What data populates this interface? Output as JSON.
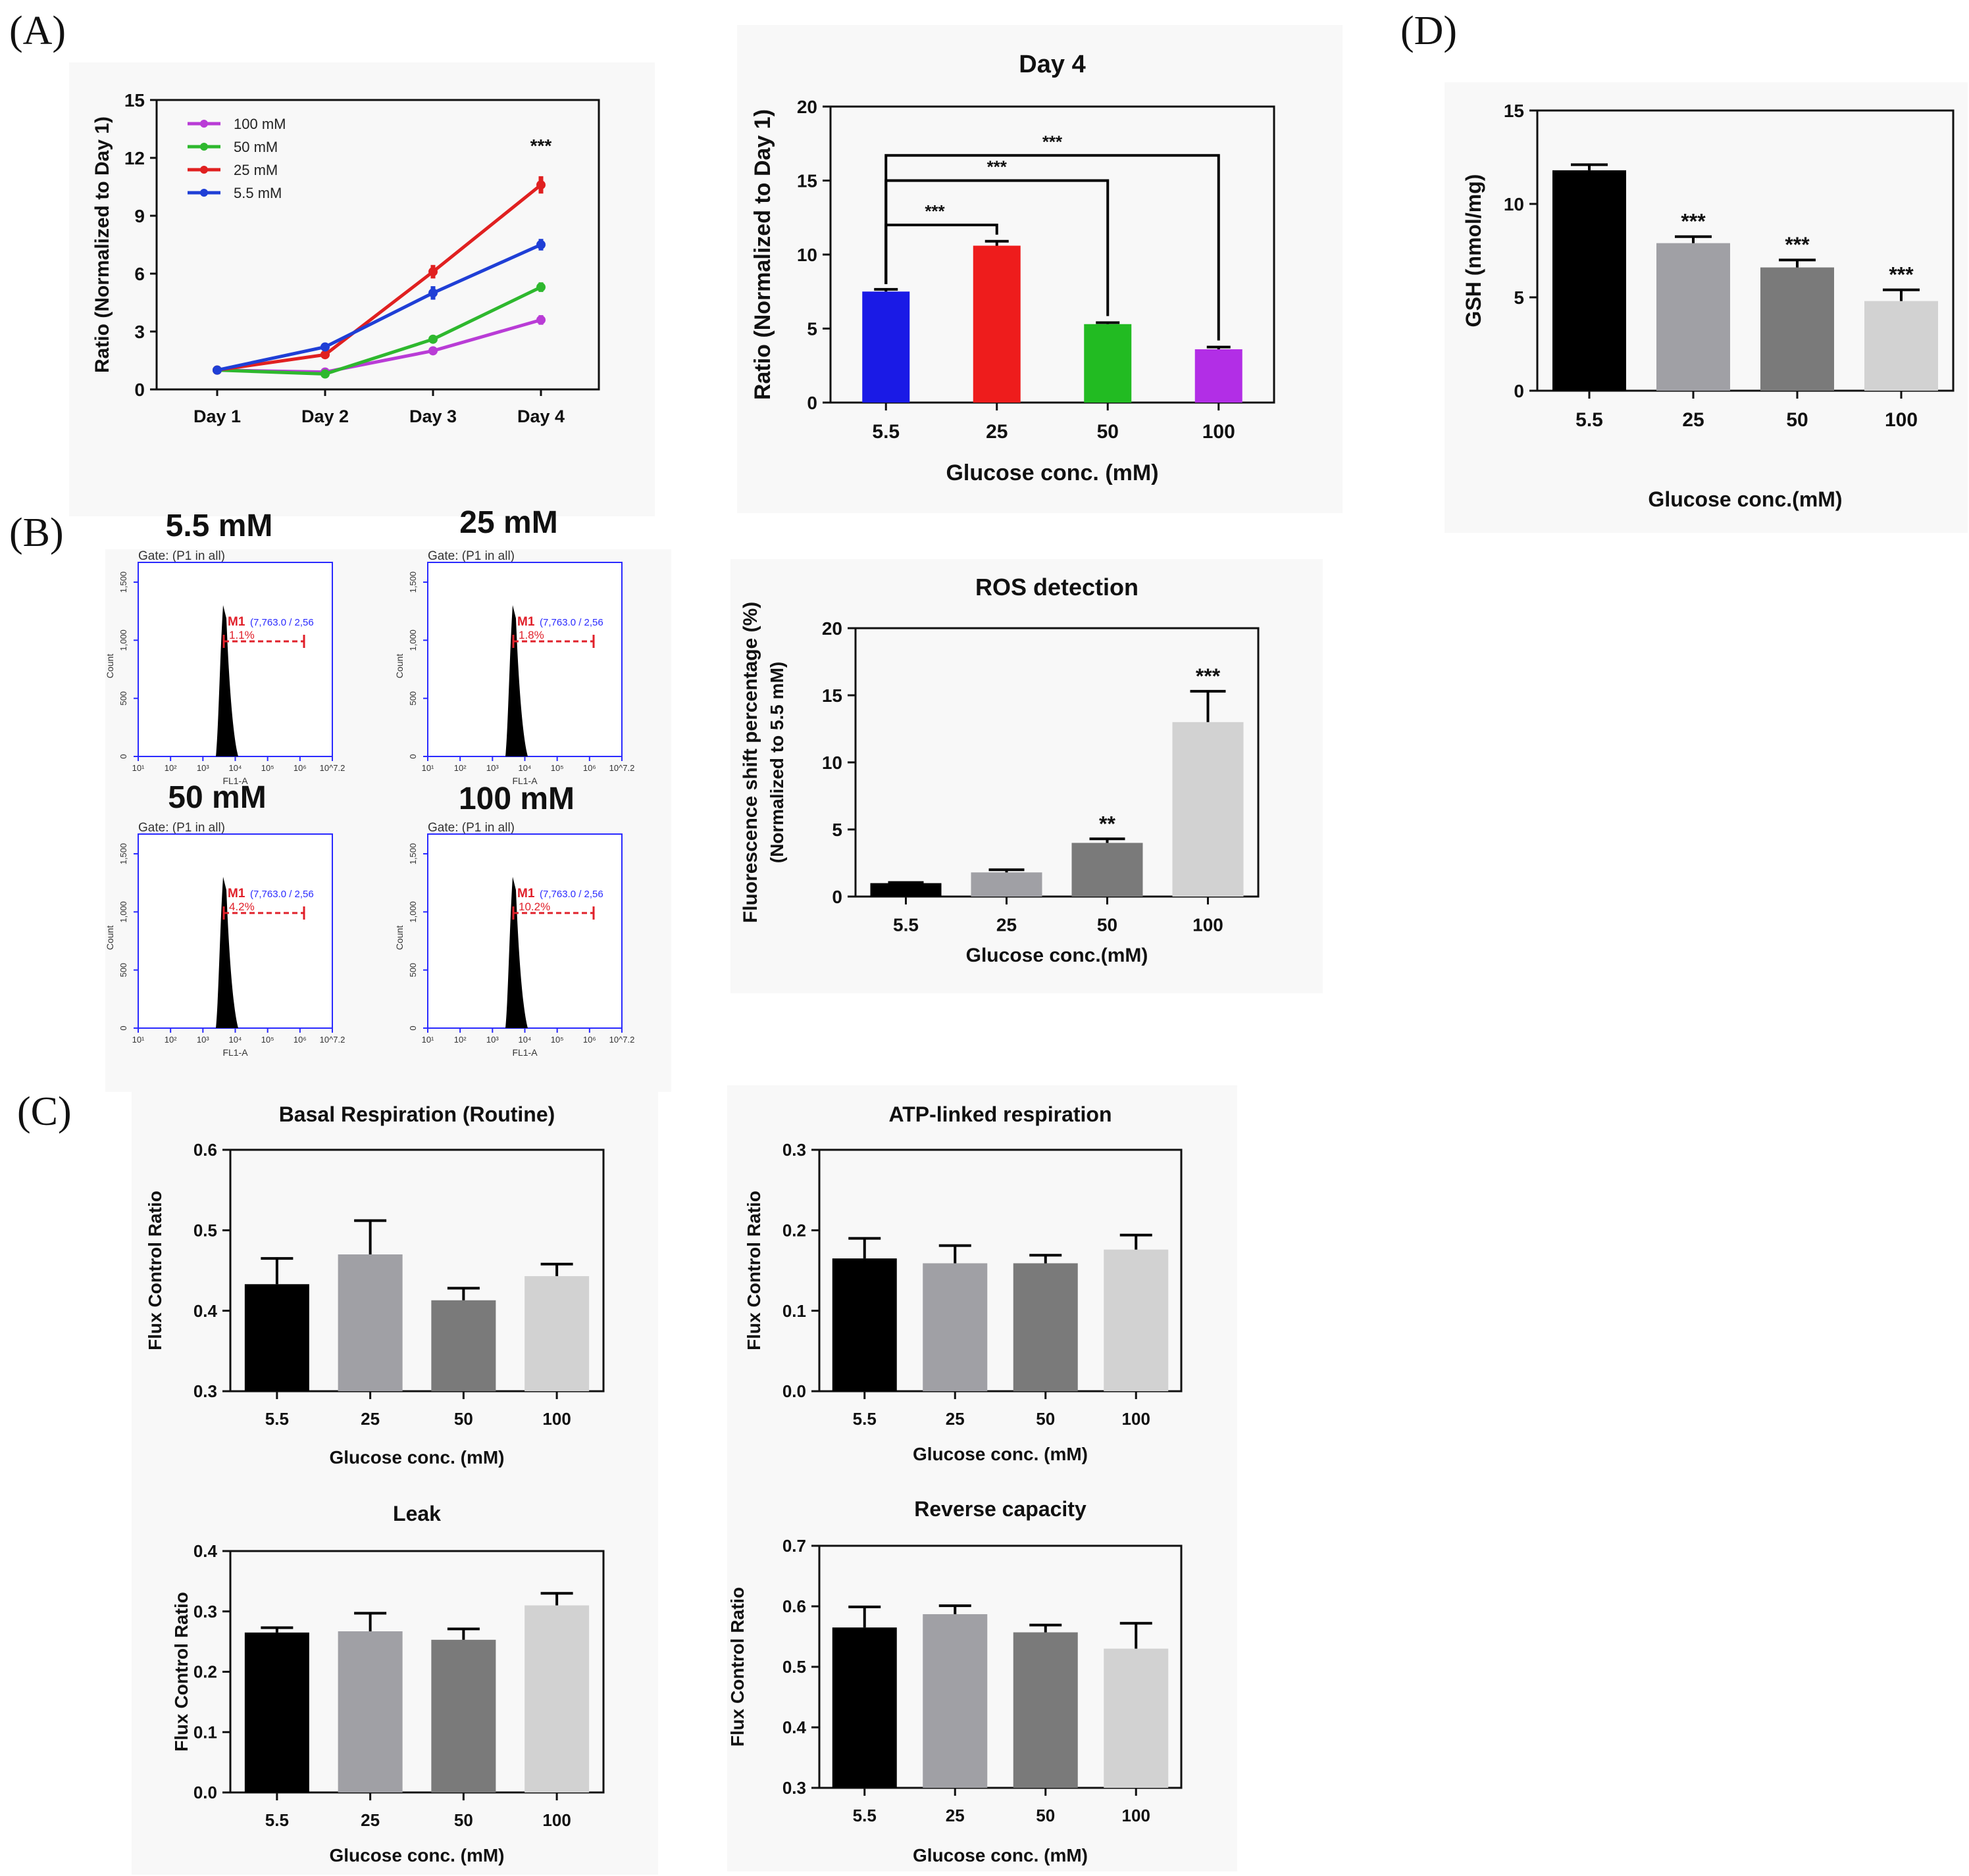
{
  "panels": {
    "A": "(A)",
    "B": "(B)",
    "C": "(C)",
    "D": "(D)"
  },
  "chart_data": [
    {
      "id": "a_line",
      "type": "line",
      "title": "",
      "xlabel": "",
      "ylabel": "Ratio (Normalized to Day 1)",
      "categories": [
        "Day 1",
        "Day 2",
        "Day 3",
        "Day 4"
      ],
      "ylim": [
        0,
        15
      ],
      "yticks": [
        0,
        3,
        6,
        9,
        12,
        15
      ],
      "legend_position": "top-left",
      "series": [
        {
          "name": "100 mM",
          "color": "#b93cd6",
          "values": [
            1.0,
            0.9,
            2.0,
            3.6
          ],
          "errors": [
            0.1,
            0.1,
            0.15,
            0.25
          ]
        },
        {
          "name": "50 mM",
          "color": "#2eb82e",
          "values": [
            1.0,
            0.8,
            2.6,
            5.3
          ],
          "errors": [
            0.1,
            0.1,
            0.15,
            0.25
          ]
        },
        {
          "name": "25 mM",
          "color": "#e02020",
          "values": [
            1.0,
            1.8,
            6.1,
            10.6
          ],
          "errors": [
            0.1,
            0.2,
            0.35,
            0.45
          ]
        },
        {
          "name": "5.5 mM",
          "color": "#1f3fd6",
          "values": [
            1.0,
            2.2,
            5.0,
            7.5
          ],
          "errors": [
            0.1,
            0.2,
            0.35,
            0.3
          ]
        }
      ],
      "annotations": [
        {
          "category": "Day 4",
          "y": 12.3,
          "text": "***"
        }
      ]
    },
    {
      "id": "a_day4",
      "type": "bar",
      "title": "Day 4",
      "xlabel": "Glucose conc. (mM)",
      "ylabel": "Ratio (Normalized to Day 1)",
      "categories": [
        "5.5",
        "25",
        "50",
        "100"
      ],
      "values": [
        7.5,
        10.6,
        5.3,
        3.6
      ],
      "errors": [
        0.15,
        0.3,
        0.1,
        0.15
      ],
      "colors": [
        "#1a1ae6",
        "#ee1c1c",
        "#22bb22",
        "#b22ee6"
      ],
      "ylim": [
        0,
        20
      ],
      "yticks": [
        0,
        5,
        10,
        15,
        20
      ],
      "brackets": [
        {
          "from": 0,
          "to": 1,
          "y": 12.0,
          "text": "***"
        },
        {
          "from": 0,
          "to": 2,
          "y": 15.0,
          "text": "***"
        },
        {
          "from": 0,
          "to": 3,
          "y": 16.7,
          "text": "***"
        }
      ]
    },
    {
      "id": "d_gsh",
      "type": "bar",
      "title": "",
      "xlabel": "Glucose conc.(mM)",
      "ylabel": "GSH (nmol/mg)",
      "categories": [
        "5.5",
        "25",
        "50",
        "100"
      ],
      "values": [
        11.8,
        7.9,
        6.6,
        4.8
      ],
      "errors": [
        0.3,
        0.35,
        0.4,
        0.6
      ],
      "colors": [
        "#000000",
        "#a0a0a5",
        "#7a7a7a",
        "#d2d2d2"
      ],
      "ylim": [
        0,
        15
      ],
      "yticks": [
        0,
        5,
        10,
        15
      ],
      "sig": [
        "",
        "***",
        "***",
        "***"
      ]
    },
    {
      "id": "b_ros",
      "type": "bar",
      "title": "ROS detection",
      "xlabel": "Glucose conc.(mM)",
      "ylabel": "Fluorescence shift percentage (%)",
      "ylabel2": "(Normalized to 5.5 mM)",
      "categories": [
        "5.5",
        "25",
        "50",
        "100"
      ],
      "values": [
        1.0,
        1.8,
        4.0,
        13.0
      ],
      "errors": [
        0.05,
        0.2,
        0.3,
        2.3
      ],
      "colors": [
        "#000000",
        "#a0a0a5",
        "#7a7a7a",
        "#d2d2d2"
      ],
      "ylim": [
        0,
        20
      ],
      "yticks": [
        0,
        5,
        10,
        15,
        20
      ],
      "sig": [
        "",
        "",
        "**",
        "***"
      ]
    },
    {
      "id": "c_basal",
      "type": "bar",
      "title": "Basal Respiration (Routine)",
      "xlabel": "Glucose conc. (mM)",
      "ylabel": "Flux Control Ratio",
      "categories": [
        "5.5",
        "25",
        "50",
        "100"
      ],
      "values": [
        0.433,
        0.47,
        0.413,
        0.443
      ],
      "errors": [
        0.032,
        0.042,
        0.015,
        0.015
      ],
      "colors": [
        "#000000",
        "#a0a0a5",
        "#7a7a7a",
        "#d2d2d2"
      ],
      "ylim": [
        0.3,
        0.6
      ],
      "yticks": [
        0.3,
        0.4,
        0.5,
        0.6
      ],
      "ytick_labels": [
        "0.3",
        "0.4",
        "0.5",
        "0.6"
      ]
    },
    {
      "id": "c_atp",
      "type": "bar",
      "title": "ATP-linked respiration",
      "xlabel": "Glucose conc. (mM)",
      "ylabel": "Flux Control Ratio",
      "categories": [
        "5.5",
        "25",
        "50",
        "100"
      ],
      "values": [
        0.165,
        0.159,
        0.159,
        0.176
      ],
      "errors": [
        0.025,
        0.022,
        0.01,
        0.018
      ],
      "colors": [
        "#000000",
        "#a0a0a5",
        "#7a7a7a",
        "#d2d2d2"
      ],
      "ylim": [
        0.0,
        0.3
      ],
      "yticks": [
        0.0,
        0.1,
        0.2,
        0.3
      ],
      "ytick_labels": [
        "0.0",
        "0.1",
        "0.2",
        "0.3"
      ]
    },
    {
      "id": "c_leak",
      "type": "bar",
      "title": "Leak",
      "xlabel": "Glucose conc. (mM)",
      "ylabel": "Flux Control Ratio",
      "categories": [
        "5.5",
        "25",
        "50",
        "100"
      ],
      "values": [
        0.265,
        0.267,
        0.253,
        0.31
      ],
      "errors": [
        0.008,
        0.03,
        0.018,
        0.02
      ],
      "colors": [
        "#000000",
        "#a0a0a5",
        "#7a7a7a",
        "#d2d2d2"
      ],
      "ylim": [
        0.0,
        0.4
      ],
      "yticks": [
        0.0,
        0.1,
        0.2,
        0.3,
        0.4
      ],
      "ytick_labels": [
        "0.0",
        "0.1",
        "0.2",
        "0.3",
        "0.4"
      ]
    },
    {
      "id": "c_reverse",
      "type": "bar",
      "title": "Reverse capacity",
      "xlabel": "Glucose conc. (mM)",
      "ylabel": "Flux Control Ratio",
      "categories": [
        "5.5",
        "25",
        "50",
        "100"
      ],
      "values": [
        0.565,
        0.587,
        0.557,
        0.53
      ],
      "errors": [
        0.034,
        0.014,
        0.012,
        0.042
      ],
      "colors": [
        "#000000",
        "#a0a0a5",
        "#7a7a7a",
        "#d2d2d2"
      ],
      "ylim": [
        0.3,
        0.7
      ],
      "yticks": [
        0.3,
        0.4,
        0.5,
        0.6,
        0.7
      ],
      "ytick_labels": [
        "0.3",
        "0.4",
        "0.5",
        "0.6",
        "0.7"
      ]
    }
  ],
  "flow": {
    "conditions": [
      {
        "title": "5.5 mM",
        "gate": "Gate: (P1 in all)",
        "marker": "M1",
        "range": "(7,763.0 / 2,56",
        "percent": "1.1%"
      },
      {
        "title": "25 mM",
        "gate": "Gate: (P1 in all)",
        "marker": "M1",
        "range": "(7,763.0 / 2,56",
        "percent": "1.8%"
      },
      {
        "title": "50 mM",
        "gate": "Gate: (P1 in all)",
        "marker": "M1",
        "range": "(7,763.0 / 2,56",
        "percent": "4.2%"
      },
      {
        "title": "100 mM",
        "gate": "Gate: (P1 in all)",
        "marker": "M1",
        "range": "(7,763.0 / 2,56",
        "percent": "10.2%"
      }
    ],
    "ylabel": "Count",
    "xlabel": "FL1-A",
    "yticks": [
      "0",
      "500",
      "1,000",
      "1,500"
    ],
    "xticks": [
      "10¹",
      "10²",
      "10³",
      "10⁴",
      "10⁵",
      "10⁶",
      "10^7.2"
    ]
  },
  "colors": {
    "axis": "#111111",
    "flow_axis": "#2a2aff",
    "flow_marker": "#e0202a",
    "panel_bg": "#f7f7f7"
  }
}
